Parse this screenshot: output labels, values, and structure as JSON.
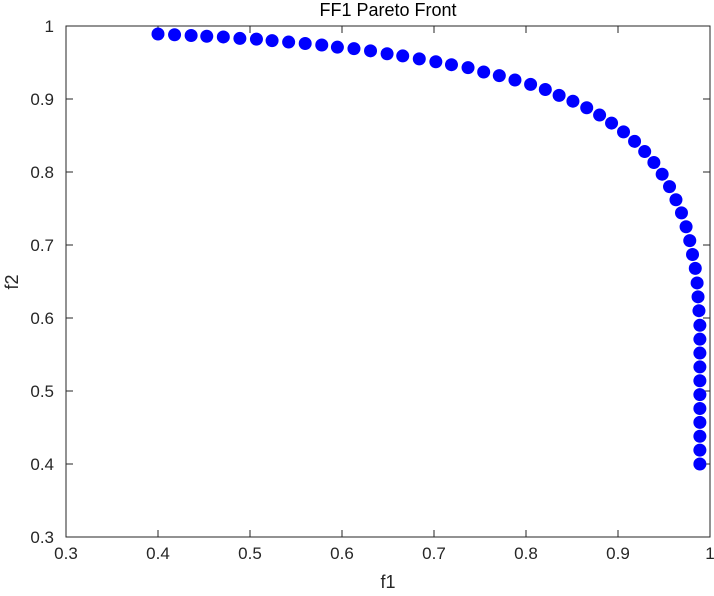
{
  "chart_data": {
    "type": "scatter",
    "title": "FF1 Pareto Front",
    "xlabel": "f1",
    "ylabel": "f2",
    "xlim": [
      0.3,
      1
    ],
    "ylim": [
      0.3,
      1
    ],
    "xticks": [
      "0.3",
      "0.4",
      "0.5",
      "0.6",
      "0.7",
      "0.8",
      "0.9",
      "1"
    ],
    "yticks": [
      "0.3",
      "0.4",
      "0.5",
      "0.6",
      "0.7",
      "0.8",
      "0.9",
      "1"
    ],
    "grid": false,
    "marker_color": "#0000ff",
    "axis_color": "#262626",
    "points": [
      [
        0.4,
        0.989
      ],
      [
        0.418,
        0.988
      ],
      [
        0.436,
        0.987
      ],
      [
        0.453,
        0.986
      ],
      [
        0.471,
        0.985
      ],
      [
        0.489,
        0.983
      ],
      [
        0.507,
        0.982
      ],
      [
        0.524,
        0.98
      ],
      [
        0.542,
        0.978
      ],
      [
        0.56,
        0.976
      ],
      [
        0.578,
        0.974
      ],
      [
        0.595,
        0.971
      ],
      [
        0.613,
        0.969
      ],
      [
        0.631,
        0.966
      ],
      [
        0.649,
        0.962
      ],
      [
        0.666,
        0.959
      ],
      [
        0.684,
        0.955
      ],
      [
        0.702,
        0.951
      ],
      [
        0.719,
        0.947
      ],
      [
        0.737,
        0.943
      ],
      [
        0.754,
        0.937
      ],
      [
        0.771,
        0.932
      ],
      [
        0.788,
        0.926
      ],
      [
        0.805,
        0.92
      ],
      [
        0.821,
        0.913
      ],
      [
        0.836,
        0.905
      ],
      [
        0.851,
        0.897
      ],
      [
        0.866,
        0.888
      ],
      [
        0.88,
        0.878
      ],
      [
        0.893,
        0.867
      ],
      [
        0.906,
        0.855
      ],
      [
        0.918,
        0.842
      ],
      [
        0.929,
        0.828
      ],
      [
        0.939,
        0.813
      ],
      [
        0.948,
        0.797
      ],
      [
        0.956,
        0.78
      ],
      [
        0.963,
        0.762
      ],
      [
        0.969,
        0.744
      ],
      [
        0.974,
        0.725
      ],
      [
        0.978,
        0.706
      ],
      [
        0.981,
        0.687
      ],
      [
        0.984,
        0.668
      ],
      [
        0.986,
        0.648
      ],
      [
        0.987,
        0.629
      ],
      [
        0.988,
        0.61
      ],
      [
        0.989,
        0.59
      ],
      [
        0.989,
        0.571
      ],
      [
        0.989,
        0.552
      ],
      [
        0.989,
        0.533
      ],
      [
        0.989,
        0.514
      ],
      [
        0.989,
        0.495
      ],
      [
        0.989,
        0.476
      ],
      [
        0.989,
        0.457
      ],
      [
        0.989,
        0.438
      ],
      [
        0.989,
        0.419
      ],
      [
        0.989,
        0.4
      ]
    ]
  }
}
